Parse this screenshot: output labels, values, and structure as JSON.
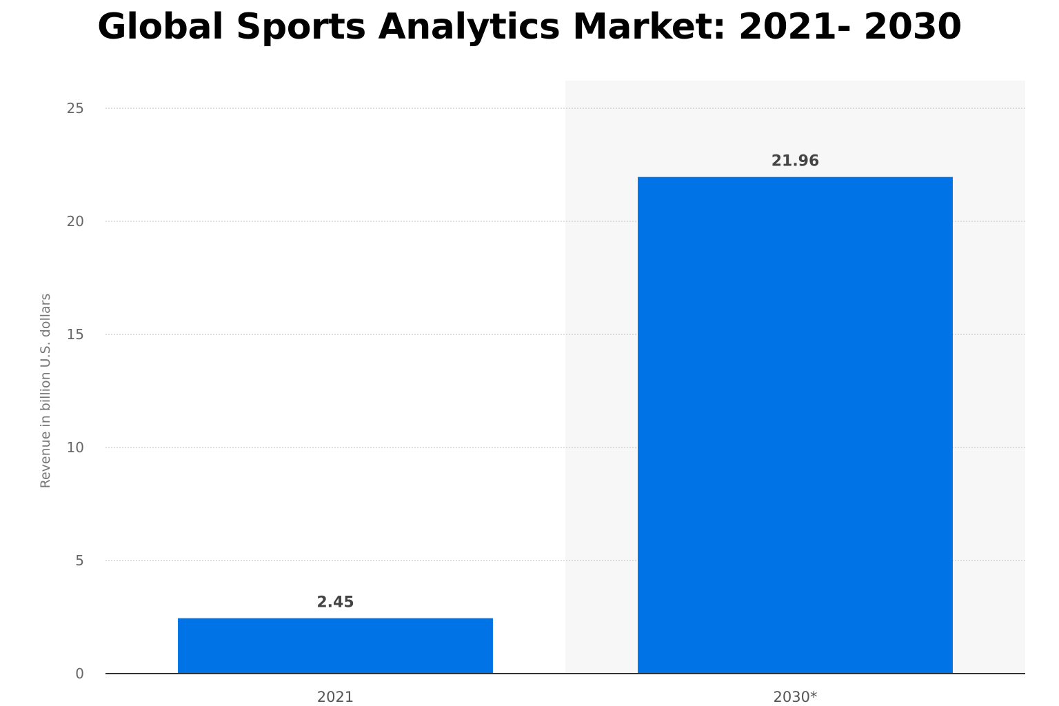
{
  "chart_data": {
    "type": "bar",
    "title": "Global Sports Analytics Market: 2021- 2030",
    "ylabel": "Revenue in billion U.S. dollars",
    "xlabel": "",
    "categories": [
      "2021",
      "2030*"
    ],
    "values": [
      2.45,
      21.96
    ],
    "value_labels": [
      "2.45",
      "21.96"
    ],
    "ylim": [
      0,
      25
    ],
    "yticks": [
      0,
      5,
      10,
      15,
      20,
      25
    ],
    "ytick_labels": [
      "0",
      "5",
      "10",
      "15",
      "20",
      "25"
    ],
    "grid": true,
    "highlighted_category": "2030*",
    "colors": {
      "bar": "#0073e6",
      "highlight_band": "#f7f7f7",
      "grid": "#cccccc",
      "axis": "#333333"
    }
  }
}
